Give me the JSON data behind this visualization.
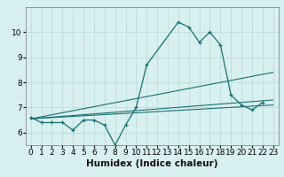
{
  "x_main": [
    0,
    1,
    2,
    3,
    4,
    5,
    6,
    7,
    8,
    9,
    10,
    11,
    14,
    15,
    16,
    17,
    18,
    19,
    20,
    21,
    22
  ],
  "y_main": [
    6.6,
    6.4,
    6.4,
    6.4,
    6.1,
    6.5,
    6.5,
    6.3,
    5.5,
    6.3,
    7.0,
    8.7,
    10.4,
    10.2,
    9.6,
    10.0,
    9.5,
    7.5,
    7.1,
    6.9,
    7.2
  ],
  "line1_x": [
    0,
    23
  ],
  "line1_y": [
    6.55,
    8.4
  ],
  "line2_x": [
    0,
    23
  ],
  "line2_y": [
    6.55,
    7.3
  ],
  "line3_x": [
    0,
    23
  ],
  "line3_y": [
    6.55,
    7.1
  ],
  "bg_color": "#d8f0ef",
  "line_color": "#1a7070",
  "grid_color": "#b8d8d8",
  "ylim": [
    5.5,
    11.0
  ],
  "xlim": [
    -0.5,
    23.5
  ],
  "yticks": [
    6,
    7,
    8,
    9,
    10
  ],
  "xticks": [
    0,
    1,
    2,
    3,
    4,
    5,
    6,
    7,
    8,
    9,
    10,
    11,
    12,
    13,
    14,
    15,
    16,
    17,
    18,
    19,
    20,
    21,
    22,
    23
  ],
  "xlabel": "Humidex (Indice chaleur)",
  "xlabel_fontsize": 7.5,
  "tick_fontsize": 6.5
}
